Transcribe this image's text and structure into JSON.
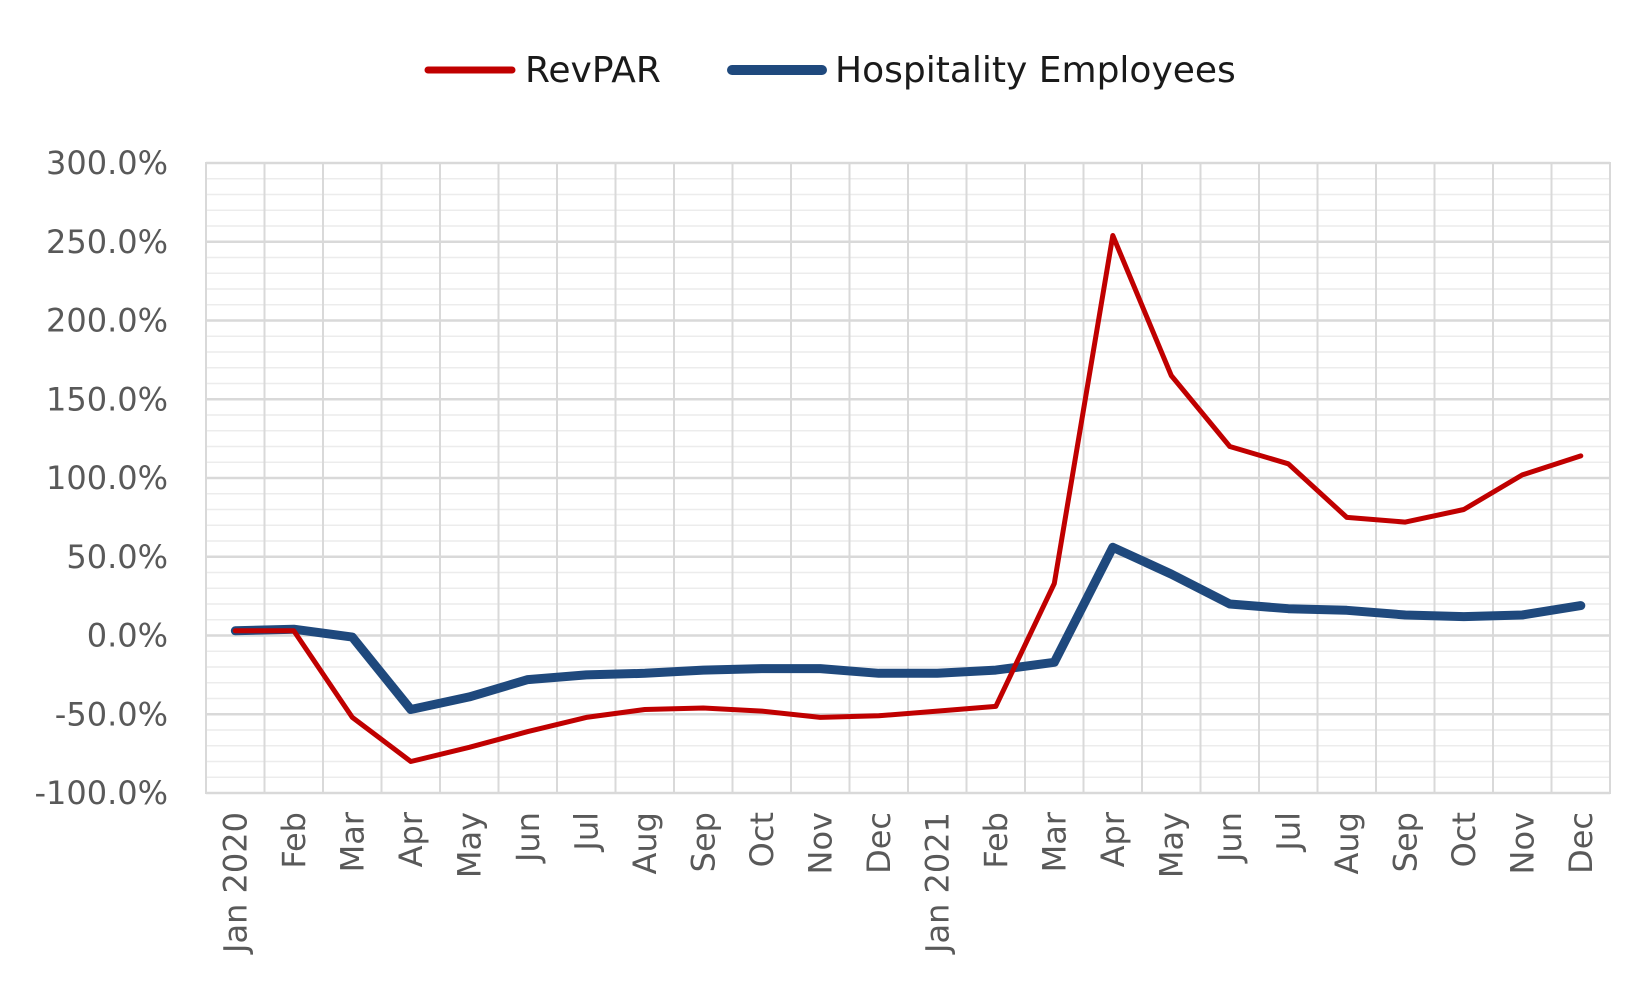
{
  "chart_data": {
    "type": "line",
    "title": "",
    "xlabel": "",
    "ylabel": "",
    "ylim": [
      -100,
      300
    ],
    "yticks": [
      -100,
      -50,
      0,
      50,
      100,
      150,
      200,
      250,
      300
    ],
    "ytick_labels": [
      "-100.0%",
      "-50.0%",
      "0.0%",
      "50.0%",
      "100.0%",
      "150.0%",
      "200.0%",
      "250.0%",
      "300.0%"
    ],
    "y_unit": "%",
    "grid": true,
    "legend_position": "top",
    "categories": [
      "Jan 2020",
      "Feb",
      "Mar",
      "Apr",
      "May",
      "Jun",
      "Jul",
      "Aug",
      "Sep",
      "Oct",
      "Nov",
      "Dec",
      "Jan 2021",
      "Feb",
      "Mar",
      "Apr",
      "May",
      "Jun",
      "Jul",
      "Aug",
      "Sep",
      "Oct",
      "Nov",
      "Dec"
    ],
    "series": [
      {
        "name": "RevPAR",
        "color": "#c00000",
        "values": [
          3,
          3,
          -52,
          -80,
          -71,
          -61,
          -52,
          -47,
          -46,
          -48,
          -52,
          -51,
          -48,
          -45,
          33,
          254,
          165,
          120,
          109,
          75,
          72,
          80,
          102,
          114
        ]
      },
      {
        "name": "Hospitality Employees",
        "color": "#1f497d",
        "values": [
          3,
          4,
          -1,
          -47,
          -39,
          -28,
          -25,
          -24,
          -22,
          -21,
          -21,
          -24,
          -24,
          -22,
          -17,
          56,
          39,
          20,
          17,
          16,
          13,
          12,
          13,
          19
        ]
      }
    ]
  }
}
